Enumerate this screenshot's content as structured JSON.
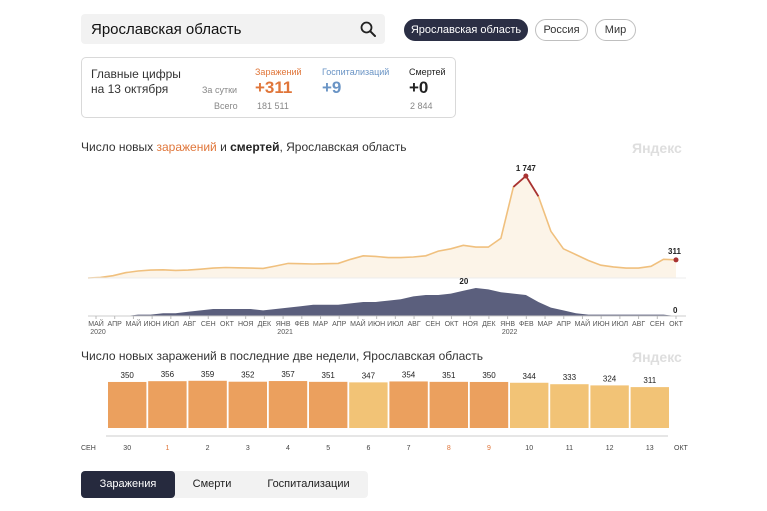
{
  "search": {
    "value": "Ярославская область",
    "placeholder": ""
  },
  "regions": [
    {
      "label": "Ярославская область",
      "active": true
    },
    {
      "label": "Россия",
      "active": false
    },
    {
      "label": "Мир",
      "active": false
    }
  ],
  "stats": {
    "title_line1": "Главные цифры",
    "title_line2": "на 13 октября",
    "row_daily_label": "За сутки",
    "row_total_label": "Всего",
    "infections": {
      "label": "Заражений",
      "daily": "+311",
      "total": "181 511"
    },
    "hospitalizations": {
      "label": "Госпитализаций",
      "daily": "+9",
      "total": ""
    },
    "deaths": {
      "label": "Смертей",
      "daily": "+0",
      "total": "2 844"
    }
  },
  "chart1_title": {
    "pre": "Число новых ",
    "hl": "заражений",
    "mid": " и ",
    "bold": "смертей",
    "post": ", Ярославская область"
  },
  "watermark": "Яндекс",
  "chart2_title": "Число новых заражений в последние две недели, Ярославская область",
  "tabs": [
    {
      "label": "Заражения",
      "active": true
    },
    {
      "label": "Смерти",
      "active": false
    },
    {
      "label": "Госпитализации",
      "active": false
    }
  ],
  "colors": {
    "infections_line": "#f0c07e",
    "peak": "#a83232",
    "deaths_area": "#5b5f7d",
    "bar_weekday": "#eba05e",
    "bar_weekend": "#f2c376",
    "holiday_label": "#e0763a"
  },
  "chart_data": [
    {
      "type": "area",
      "x_tick_labels": [
        "МАЙ",
        "АПР",
        "МАЙ",
        "ИЮН",
        "ИЮЛ",
        "АВГ",
        "СЕН",
        "ОКТ",
        "НОЯ",
        "ДЕК",
        "ЯНВ",
        "ФЕВ",
        "МАР",
        "АПР",
        "МАЙ",
        "ИЮН",
        "ИЮЛ",
        "АВГ",
        "СЕН",
        "ОКТ",
        "НОЯ",
        "ДЕК",
        "ЯНВ",
        "ФЕВ",
        "МАР",
        "АПР",
        "МАЙ",
        "ИЮН",
        "ИЮЛ",
        "АВГ",
        "СЕН",
        "ОКТ"
      ],
      "year_labels": [
        "2020",
        "2021",
        "2022"
      ],
      "series": [
        {
          "name": "заражений",
          "values": [
            0,
            10,
            40,
            90,
            120,
            135,
            140,
            130,
            135,
            150,
            170,
            180,
            175,
            170,
            165,
            205,
            250,
            245,
            240,
            245,
            250,
            320,
            380,
            370,
            350,
            350,
            360,
            380,
            460,
            500,
            560,
            530,
            530,
            680,
            1560,
            1747,
            1400,
            800,
            500,
            400,
            300,
            220,
            190,
            170,
            170,
            200,
            320,
            311
          ]
        },
        {
          "name": "смертей",
          "values": [
            0,
            0,
            0,
            0,
            1,
            1,
            2,
            2,
            3,
            4,
            5,
            5,
            5,
            5,
            4,
            5,
            6,
            7,
            8,
            8,
            8,
            9,
            10,
            10,
            11,
            12,
            14,
            15,
            15,
            16,
            18,
            20,
            19,
            17,
            16,
            15,
            10,
            6,
            4,
            2,
            1,
            1,
            1,
            1,
            1,
            1,
            1,
            0
          ]
        }
      ],
      "annotations": [
        {
          "series": "заражений",
          "label": "1 747"
        },
        {
          "series": "заражений",
          "label": "311"
        },
        {
          "series": "смертей",
          "label": "20"
        },
        {
          "series": "смертей",
          "label": "0"
        }
      ]
    },
    {
      "type": "bar",
      "start_label": "СЕН",
      "end_label": "ОКТ",
      "categories": [
        "30",
        "1",
        "2",
        "3",
        "4",
        "5",
        "6",
        "7",
        "8",
        "9",
        "10",
        "11",
        "12",
        "13"
      ],
      "values": [
        350,
        356,
        359,
        352,
        357,
        351,
        347,
        354,
        351,
        350,
        344,
        333,
        324,
        311
      ],
      "weekend": [
        false,
        false,
        false,
        false,
        false,
        false,
        true,
        false,
        false,
        false,
        true,
        true,
        true,
        true
      ],
      "holiday_labels": [
        false,
        true,
        false,
        false,
        false,
        false,
        false,
        false,
        true,
        true,
        false,
        false,
        false,
        false
      ]
    }
  ]
}
